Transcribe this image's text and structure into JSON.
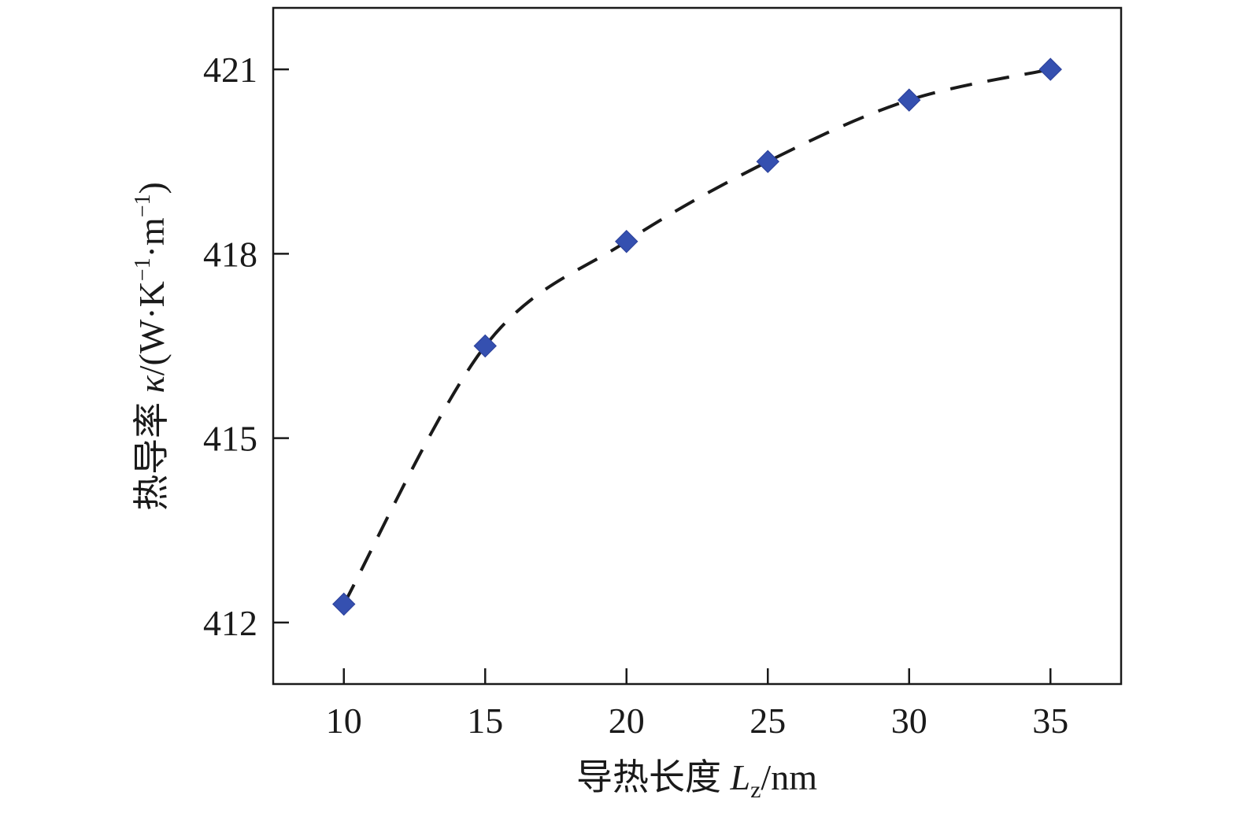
{
  "chart_data": {
    "type": "line",
    "x": [
      10,
      15,
      20,
      25,
      30,
      35
    ],
    "series": [
      {
        "values": [
          412.3,
          416.5,
          418.2,
          419.5,
          420.5,
          421.0
        ],
        "marker": "diamond",
        "line_style": "dashed",
        "line_color": "#1a1a1a",
        "marker_color": "#3550b0"
      }
    ],
    "xlabel": {
      "prefix": "导热长度 ",
      "symbol": "L",
      "subscript": "z",
      "unit": "/nm"
    },
    "ylabel": {
      "prefix": "热导率 ",
      "symbol": "κ",
      "unit_open": "/(W·K",
      "sup1": "−1",
      "middle": "·m",
      "sup2": "−1",
      "unit_close": ")"
    },
    "xticks": [
      "10",
      "15",
      "20",
      "25",
      "30",
      "35"
    ],
    "yticks": [
      "412",
      "415",
      "418",
      "421"
    ],
    "xtick_values": [
      10,
      15,
      20,
      25,
      30,
      35
    ],
    "ytick_values": [
      412,
      415,
      418,
      421
    ],
    "xlim": [
      7.5,
      37.5
    ],
    "ylim": [
      411.0,
      422.0
    ],
    "grid": false,
    "legend": "none"
  }
}
